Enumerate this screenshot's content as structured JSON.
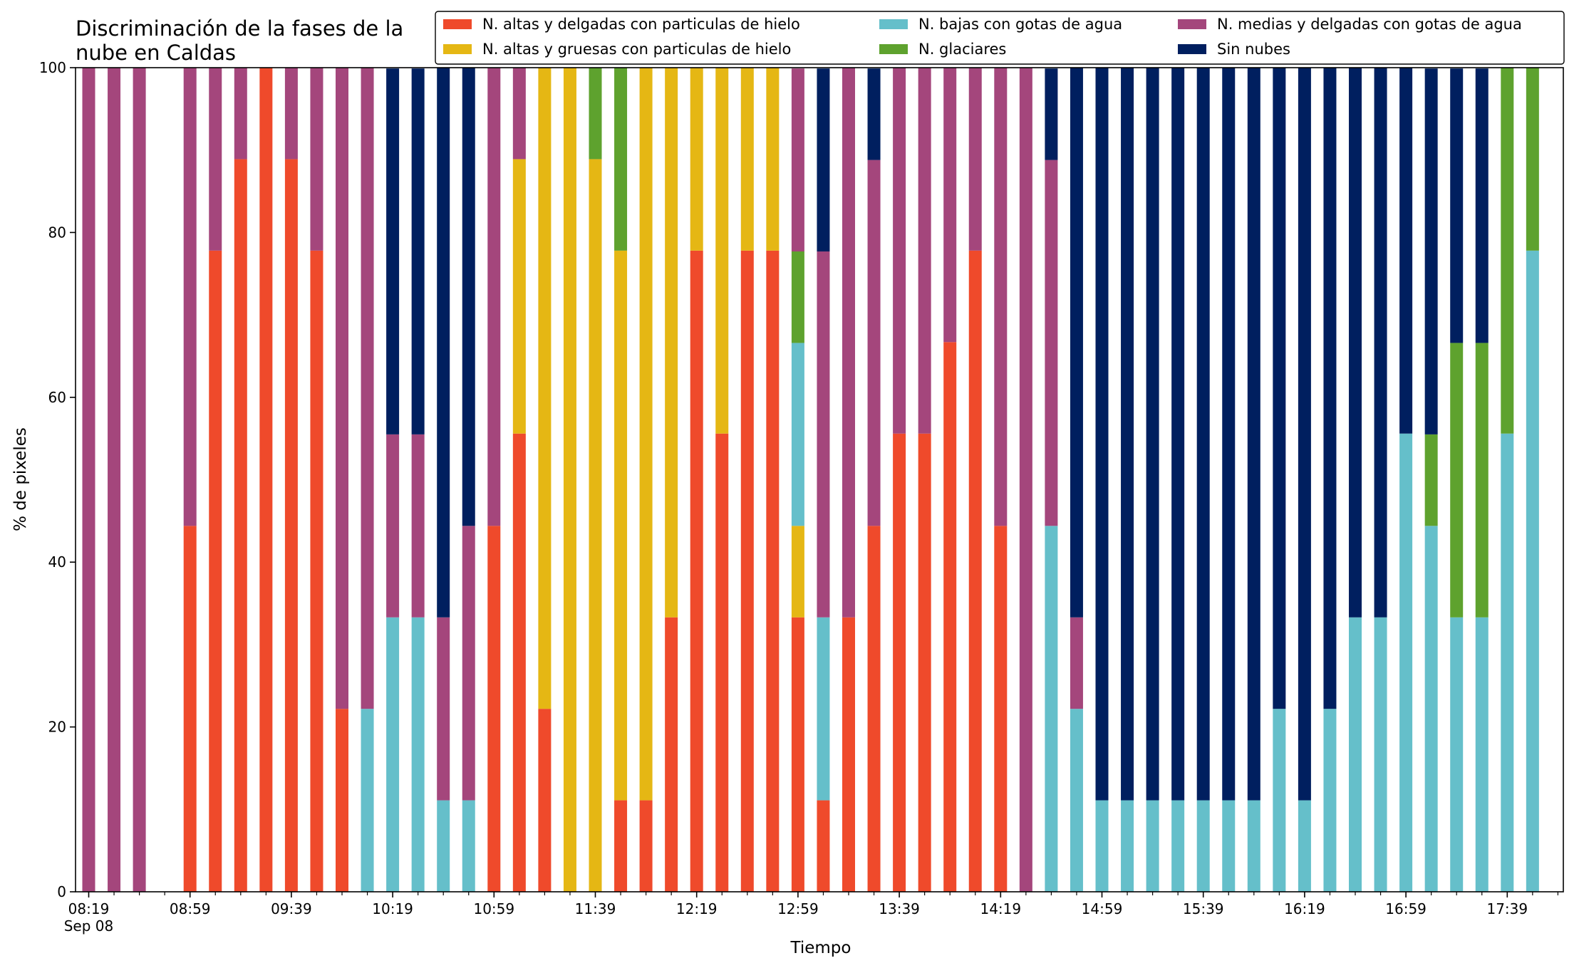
{
  "chart_data": {
    "type": "bar",
    "stacked": true,
    "title": "Discriminación de la fases de la nube en Caldas",
    "title_lines": [
      "Discriminación de la fases de la",
      "nube en Caldas"
    ],
    "xlabel": "Tiempo",
    "ylabel": "% de pixeles",
    "ylim": [
      0,
      100
    ],
    "yticks": [
      0,
      20,
      40,
      60,
      80,
      100
    ],
    "grid": false,
    "legend_position": "top-right",
    "legend_columns": 3,
    "x_start": "08:19",
    "x_step_minutes": 10,
    "x_count": 59,
    "xtick_labels": [
      {
        "label": "08:19",
        "sub": "Sep 08"
      },
      {
        "label": "08:59",
        "sub": ""
      },
      {
        "label": "09:39",
        "sub": ""
      },
      {
        "label": "10:19",
        "sub": ""
      },
      {
        "label": "10:59",
        "sub": ""
      },
      {
        "label": "11:39",
        "sub": ""
      },
      {
        "label": "12:19",
        "sub": ""
      },
      {
        "label": "12:59",
        "sub": ""
      },
      {
        "label": "13:39",
        "sub": ""
      },
      {
        "label": "14:19",
        "sub": ""
      },
      {
        "label": "14:59",
        "sub": ""
      },
      {
        "label": "15:39",
        "sub": ""
      },
      {
        "label": "16:19",
        "sub": ""
      },
      {
        "label": "16:59",
        "sub": ""
      },
      {
        "label": "17:39",
        "sub": ""
      }
    ],
    "series": [
      {
        "name": "N. altas y delgadas con particulas de hielo",
        "color": "#ef4a2b",
        "values": [
          0,
          0,
          0,
          0,
          44.4,
          77.8,
          88.9,
          100,
          88.9,
          77.8,
          22.2,
          0,
          0,
          0,
          0,
          0,
          44.4,
          55.6,
          22.2,
          0,
          0,
          11.1,
          11.1,
          33.3,
          77.8,
          55.6,
          77.8,
          77.8,
          33.3,
          11.1,
          33.3,
          44.4,
          55.6,
          55.6,
          66.7,
          77.8,
          44.4,
          0,
          0,
          0,
          0,
          0,
          0,
          0,
          0,
          0,
          0,
          0,
          0,
          0,
          0,
          0,
          0,
          0,
          0,
          0,
          0,
          0,
          0
        ]
      },
      {
        "name": "N. altas y gruesas con particulas de hielo",
        "color": "#e5b714",
        "values": [
          0,
          0,
          0,
          0,
          0,
          0,
          0,
          0,
          0,
          0,
          0,
          0,
          0,
          0,
          0,
          0,
          0,
          33.3,
          77.8,
          100,
          88.9,
          66.7,
          88.9,
          66.7,
          22.2,
          44.4,
          22.2,
          22.2,
          11.1,
          0,
          0,
          0,
          0,
          0,
          0,
          0,
          0,
          0,
          0,
          0,
          0,
          0,
          0,
          0,
          0,
          0,
          0,
          0,
          0,
          0,
          0,
          0,
          0,
          0,
          0,
          0,
          0,
          0,
          0
        ]
      },
      {
        "name": "N. bajas con gotas de agua",
        "color": "#65bfca",
        "values": [
          0,
          0,
          0,
          0,
          0,
          0,
          0,
          0,
          0,
          0,
          0,
          22.2,
          33.3,
          33.3,
          11.1,
          11.1,
          0,
          0,
          0,
          0,
          0,
          0,
          0,
          0,
          0,
          0,
          0,
          0,
          22.2,
          22.2,
          0,
          0,
          0,
          0,
          0,
          0,
          0,
          0,
          44.4,
          22.2,
          11.1,
          11.1,
          11.1,
          11.1,
          11.1,
          11.1,
          11.1,
          22.2,
          11.1,
          22.2,
          33.3,
          33.3,
          55.6,
          44.4,
          33.3,
          33.3,
          55.6,
          77.8,
          0
        ]
      },
      {
        "name": "N. glaciares",
        "color": "#5ea22e",
        "values": [
          0,
          0,
          0,
          0,
          0,
          0,
          0,
          0,
          0,
          0,
          0,
          0,
          0,
          0,
          0,
          0,
          0,
          0,
          0,
          0,
          11.1,
          22.2,
          0,
          0,
          0,
          0,
          0,
          0,
          11.1,
          0,
          0,
          0,
          0,
          0,
          0,
          0,
          0,
          0,
          0,
          0,
          0,
          0,
          0,
          0,
          0,
          0,
          0,
          0,
          0,
          0,
          0,
          0,
          0,
          11.1,
          33.3,
          33.3,
          44.4,
          22.2,
          0
        ]
      },
      {
        "name": "N. medias y delgadas con gotas de agua",
        "color": "#a4467c",
        "values": [
          100,
          100,
          100,
          0,
          55.6,
          22.2,
          11.1,
          0,
          11.1,
          22.2,
          77.8,
          77.8,
          22.2,
          22.2,
          22.2,
          33.3,
          55.6,
          11.1,
          0,
          0,
          0,
          0,
          0,
          0,
          0,
          0,
          0,
          0,
          22.2,
          44.4,
          66.7,
          44.4,
          44.4,
          44.4,
          33.3,
          22.2,
          55.6,
          100,
          44.4,
          11.1,
          0,
          0,
          0,
          0,
          0,
          0,
          0,
          0,
          0,
          0,
          0,
          0,
          0,
          0,
          0,
          0,
          0,
          0,
          0
        ]
      },
      {
        "name": "Sin nubes",
        "color": "#001f5f",
        "values": [
          0,
          0,
          0,
          0,
          0,
          0,
          0,
          0,
          0,
          0,
          0,
          0,
          44.4,
          44.4,
          66.7,
          55.6,
          0,
          0,
          0,
          0,
          0,
          0,
          0,
          0,
          0,
          0,
          0,
          0,
          0,
          22.2,
          0,
          11.1,
          0,
          0,
          0,
          0,
          0,
          0,
          11.1,
          66.7,
          88.9,
          88.9,
          88.9,
          88.9,
          88.9,
          88.9,
          88.9,
          77.8,
          88.9,
          77.8,
          66.7,
          66.7,
          44.4,
          44.4,
          33.3,
          33.3,
          0,
          0,
          0
        ]
      }
    ]
  }
}
